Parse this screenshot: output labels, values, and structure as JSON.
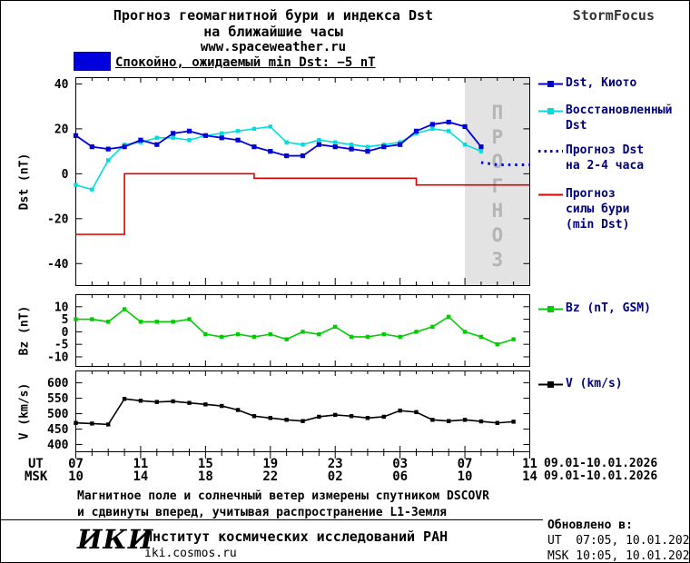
{
  "header": {
    "title_line1": "Прогноз геомагнитной бури и индекса Dst",
    "title_line2": "на ближайшие часы",
    "website": "www.spaceweather.ru",
    "brand": "StormFocus"
  },
  "status_banner": {
    "label": "Спокойно, ожидаемый min Dst: −5 nT",
    "swatch_color": "#0000dd"
  },
  "colors": {
    "forecast_bg": "#e3e3e3",
    "forecast_text": "#b5b5b5",
    "legend_text": "#00007f"
  },
  "chart_data": [
    {
      "id": "dst",
      "type": "line",
      "title": "",
      "xlabel": "",
      "ylabel": "Dst (nT)",
      "xlim": [
        0,
        28
      ],
      "ylim": [
        -50,
        43
      ],
      "yticks": [
        40,
        20,
        0,
        -20,
        -40
      ],
      "grid": false,
      "legend_position": "right",
      "forecast_region": {
        "start_hour": 24,
        "label": "ПРОГНОЗ",
        "label_hour": 26
      },
      "series": [
        {
          "id": "dst-kyoto",
          "name": "Dst, Киото",
          "color": "#0000dd",
          "marker": true,
          "width": 1.8,
          "values": [
            17,
            12,
            11,
            12,
            15,
            13,
            18,
            19,
            17,
            16,
            15,
            12,
            10,
            8,
            8,
            13,
            12,
            11,
            10,
            12,
            13,
            19,
            22,
            23,
            21,
            12
          ]
        },
        {
          "id": "dst-restored",
          "name": "Восстановленный Dst",
          "color": "#00dddd",
          "marker": true,
          "width": 1.6,
          "values": [
            -5,
            -7,
            6,
            13,
            14,
            16,
            16,
            15,
            17,
            18,
            19,
            20,
            21,
            14,
            13,
            15,
            14,
            13,
            12,
            13,
            14,
            18,
            20,
            19,
            13,
            10
          ]
        },
        {
          "id": "dst-forecast",
          "name": "Прогноз Dst на 2-4 часа",
          "color": "#0000dd",
          "style": "dotted",
          "width": 3,
          "x": [
            25,
            26,
            27,
            28
          ],
          "values": [
            5,
            4,
            4,
            4
          ]
        },
        {
          "id": "storm-forecast",
          "name": "Прогноз силы бури (min Dst)",
          "color": "#dd0000",
          "style": "step",
          "width": 1.6,
          "values": [
            -27,
            -27,
            -27,
            0,
            0,
            0,
            0,
            0,
            0,
            0,
            0,
            -2,
            -2,
            -2,
            -2,
            -2,
            -2,
            -2,
            -2,
            -2,
            -2,
            -5,
            -5,
            -5,
            -5,
            -5,
            -5,
            -5,
            -5
          ]
        }
      ]
    },
    {
      "id": "bz",
      "type": "line",
      "title": "",
      "xlabel": "",
      "ylabel": "Bz (nT)",
      "xlim": [
        0,
        28
      ],
      "ylim": [
        -14,
        15
      ],
      "yticks": [
        10,
        5,
        0,
        -5,
        -10
      ],
      "grid": false,
      "series": [
        {
          "id": "bz",
          "name": "Bz (nT, GSM)",
          "color": "#00cc00",
          "marker": true,
          "width": 1.6,
          "values": [
            5,
            5,
            4,
            9,
            4,
            4,
            4,
            5,
            -1,
            -2,
            -1,
            -2,
            -1,
            -3,
            0,
            -1,
            2,
            -2,
            -2,
            -1,
            -2,
            0,
            2,
            6,
            0,
            -2,
            -5,
            -3
          ]
        }
      ]
    },
    {
      "id": "v",
      "type": "line",
      "title": "",
      "xlabel": "",
      "ylabel": "V (km/s)",
      "xlim": [
        0,
        28
      ],
      "ylim": [
        375,
        640
      ],
      "yticks": [
        600,
        550,
        500,
        450,
        400
      ],
      "grid": false,
      "series": [
        {
          "id": "v",
          "name": "V (km/s)",
          "color": "#000000",
          "marker": true,
          "width": 1.6,
          "values": [
            470,
            468,
            465,
            548,
            542,
            538,
            540,
            535,
            530,
            525,
            512,
            492,
            486,
            480,
            476,
            490,
            496,
            492,
            486,
            490,
            510,
            505,
            480,
            476,
            480,
            475,
            470,
            474
          ]
        }
      ]
    }
  ],
  "xaxis": {
    "ut_label": "UT",
    "msk_label": "MSK",
    "tick_hours": [
      0,
      4,
      8,
      12,
      16,
      20,
      24,
      28
    ],
    "ut_ticks": [
      "07",
      "11",
      "15",
      "19",
      "23",
      "03",
      "07",
      "11"
    ],
    "msk_ticks": [
      "10",
      "14",
      "18",
      "22",
      "02",
      "06",
      "10",
      "14"
    ],
    "ut_date_range": "09.01-10.01.2026",
    "msk_date_range": "09.01-10.01.2026"
  },
  "legend": {
    "items": [
      {
        "lines": [
          "Dst, Киото"
        ],
        "color": "#0000dd",
        "swatch": "marker-line"
      },
      {
        "lines": [
          "Восстановленный",
          "Dst"
        ],
        "color": "#00dddd",
        "swatch": "marker-line"
      },
      {
        "lines": [
          "Прогноз Dst",
          "на 2-4 часа"
        ],
        "color": "#0000dd",
        "swatch": "dotted"
      },
      {
        "lines": [
          "Прогноз",
          "силы бури",
          "(min Dst)"
        ],
        "color": "#dd0000",
        "swatch": "line"
      }
    ],
    "bz": {
      "label": "Bz (nT, GSM)",
      "color": "#00cc00"
    },
    "v": {
      "label": "V (km/s)",
      "color": "#000000"
    }
  },
  "footnote": {
    "line1": "Магнитное поле и солнечный ветер измерены спутником DSCOVR",
    "line2": "и сдвинуты вперед, учитывая распространение L1-Земля"
  },
  "footer": {
    "logo": "ИКИ",
    "institute": "Институт космических исследований РАН",
    "website": "iki.cosmos.ru",
    "updated_label": "Обновлено в:",
    "updated_ut": "UT  07:05, 10.01.2026",
    "updated_msk": "MSK 10:05, 10.01.2026"
  }
}
